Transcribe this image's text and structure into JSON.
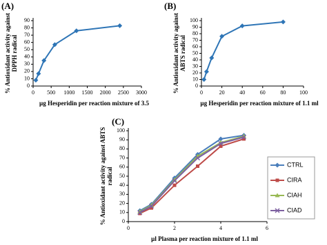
{
  "chart_data": [
    {
      "type": "line",
      "panel": "(A)",
      "ylabel": [
        "% Antioxidant activity against",
        "DPPH radical"
      ],
      "xlabel": "µg Hesperidin per reaction mixture of 3.5",
      "x": [
        75,
        150,
        300,
        600,
        1200,
        2400
      ],
      "values": [
        8,
        17,
        35,
        57,
        76,
        83
      ],
      "color": "#2e75b6",
      "marker": "diamond",
      "xlim": [
        0,
        3000
      ],
      "xticks": [
        0,
        500,
        1000,
        1500,
        2000,
        2500,
        3000
      ],
      "ylim": [
        0,
        90
      ],
      "yticks": [
        0,
        10,
        20,
        30,
        40,
        50,
        60,
        70,
        80,
        90
      ]
    },
    {
      "type": "line",
      "panel": "(B)",
      "ylabel": [
        "% Antioxidant activity against",
        "ABTS radical"
      ],
      "xlabel": "µg Hesperidin per reaction mixture of 1.1 ml",
      "x": [
        2.5,
        5,
        10,
        20,
        40,
        80
      ],
      "values": [
        10,
        22,
        43,
        76,
        92,
        98
      ],
      "color": "#2e75b6",
      "marker": "diamond",
      "xlim": [
        0,
        100
      ],
      "xticks": [
        0,
        20,
        40,
        60,
        80,
        100
      ],
      "ylim": [
        0,
        100
      ],
      "yticks": [
        0,
        10,
        20,
        30,
        40,
        50,
        60,
        70,
        80,
        90,
        100
      ]
    },
    {
      "type": "line",
      "panel": "(C)",
      "ylabel": [
        "% Antioxidant activity against ABTS",
        "radical"
      ],
      "xlabel": "µl Plasma  per reaction mixture of 1.1 ml",
      "x": [
        0.5,
        1,
        2,
        3,
        4,
        5
      ],
      "series": [
        {
          "name": "CTRL",
          "color": "#4a7ebb",
          "marker": "diamond",
          "values": [
            12,
            19,
            48,
            74,
            91,
            95
          ]
        },
        {
          "name": "CIRA",
          "color": "#be4b48",
          "marker": "square",
          "values": [
            9,
            15,
            40,
            61,
            83,
            91
          ]
        },
        {
          "name": "CIAH",
          "color": "#98b954",
          "marker": "triangle",
          "values": [
            11,
            18,
            46,
            72,
            87,
            94
          ]
        },
        {
          "name": "CIAD",
          "color": "#7d60a0",
          "marker": "x",
          "values": [
            10,
            17,
            45,
            70,
            86,
            93
          ]
        }
      ],
      "xlim": [
        0,
        6
      ],
      "xticks": [
        0,
        2,
        4,
        6
      ],
      "ylim": [
        0,
        100
      ],
      "yticks": [
        0,
        10,
        20,
        30,
        40,
        50,
        60,
        70,
        80,
        90,
        100
      ]
    }
  ]
}
